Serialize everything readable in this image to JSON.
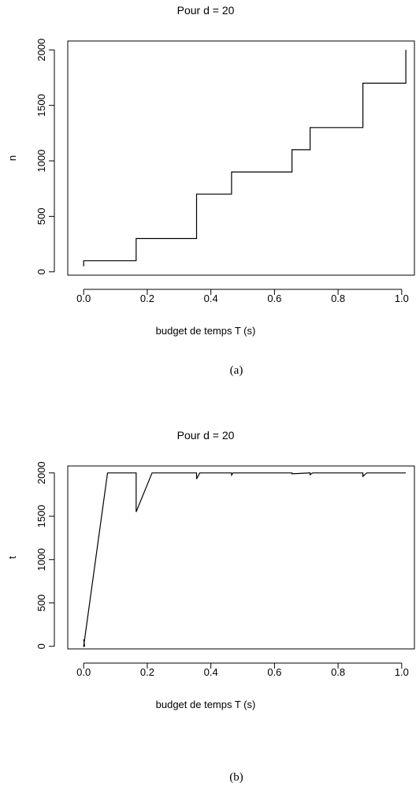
{
  "chart_data": [
    {
      "type": "line",
      "title": "Pour d =  20",
      "xlabel": "budget de temps T (s)",
      "ylabel": "n",
      "xlim": [
        -0.05,
        1.04
      ],
      "ylim": [
        -30,
        2080
      ],
      "xticks": [
        "0.0",
        "0.2",
        "0.4",
        "0.6",
        "0.8",
        "1.0"
      ],
      "yticks": [
        "0",
        "500",
        "1000",
        "1500",
        "2000"
      ],
      "caption": "(a)",
      "series": [
        {
          "x": [
            0.0,
            0.0,
            0.0,
            0.0,
            0.165,
            0.165,
            0.355,
            0.355,
            0.465,
            0.465,
            0.655,
            0.655,
            0.712,
            0.712,
            0.878,
            0.878,
            1.013,
            1.013
          ],
          "y": [
            50,
            95,
            60,
            100,
            100,
            300,
            300,
            700,
            700,
            900,
            900,
            1100,
            1100,
            1300,
            1300,
            1700,
            1700,
            2000
          ]
        }
      ]
    },
    {
      "type": "line",
      "title": "Pour d =  20",
      "xlabel": "budget de temps T (s)",
      "ylabel": "t",
      "xlim": [
        -0.05,
        1.04
      ],
      "ylim": [
        -30,
        2080
      ],
      "xticks": [
        "0.0",
        "0.2",
        "0.4",
        "0.6",
        "0.8",
        "1.0"
      ],
      "yticks": [
        "0",
        "500",
        "1000",
        "1500",
        "2000"
      ],
      "caption": "(b)",
      "series": [
        {
          "x": [
            0.0,
            0.003,
            0.0,
            0.075,
            0.165,
            0.165,
            0.215,
            0.355,
            0.355,
            0.365,
            0.465,
            0.465,
            0.47,
            0.655,
            0.655,
            0.712,
            0.712,
            0.72,
            0.878,
            0.878,
            0.89,
            1.013
          ],
          "y": [
            80,
            0,
            0,
            2000,
            2000,
            1550,
            2000,
            2000,
            1930,
            2000,
            2000,
            1975,
            2000,
            2000,
            1990,
            2000,
            1980,
            2000,
            2000,
            1960,
            2000,
            2000
          ]
        }
      ]
    }
  ]
}
